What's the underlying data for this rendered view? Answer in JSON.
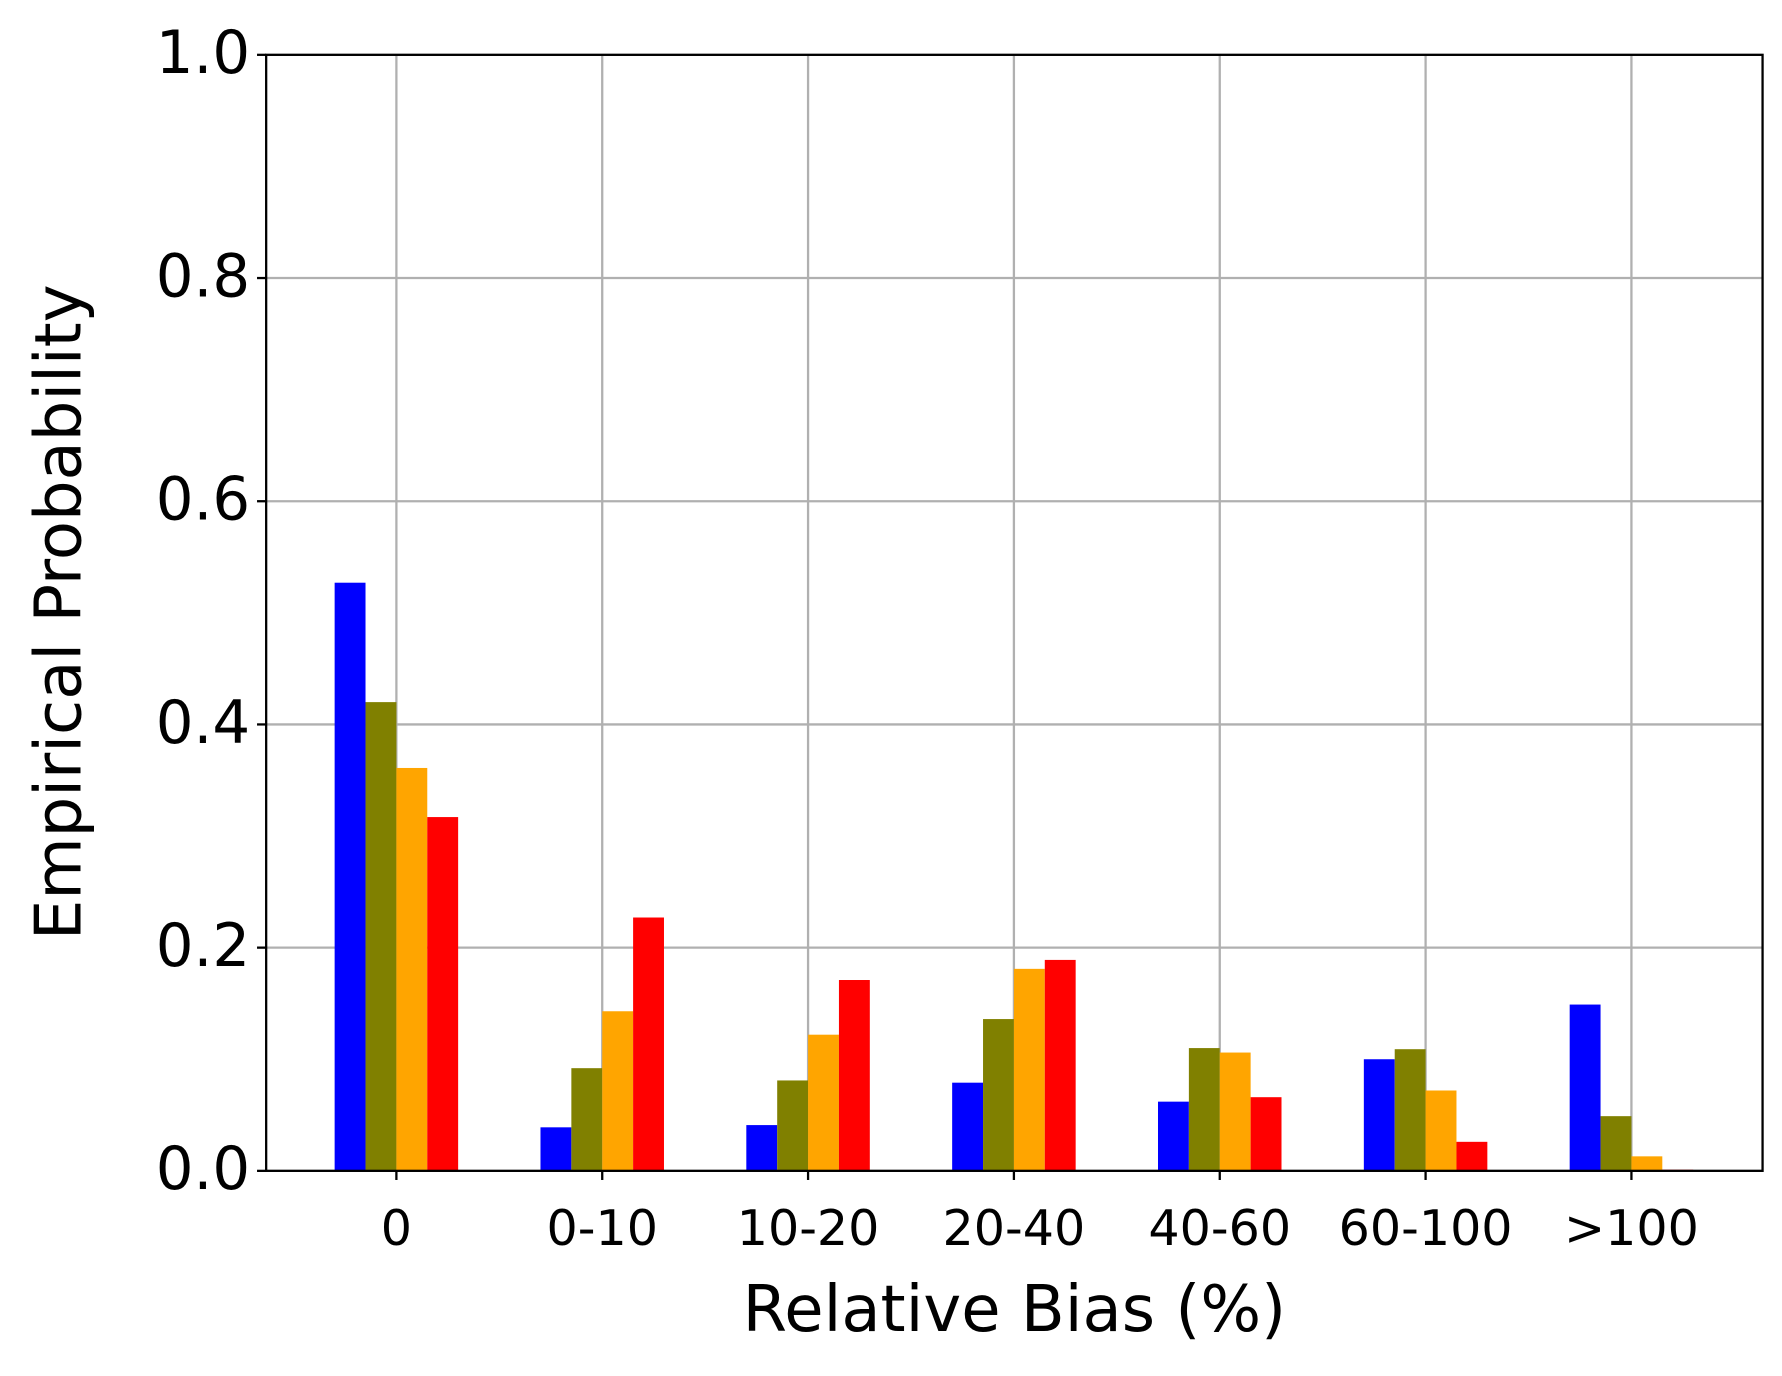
{
  "chart_data": {
    "type": "bar",
    "xlabel": "Relative Bias (%)",
    "ylabel": "Empirical Probability",
    "categories": [
      "0",
      "0-10",
      "10-20",
      "20-40",
      "40-60",
      "60-100",
      ">100"
    ],
    "series": [
      {
        "color": "#0000ff",
        "values": [
          0.527,
          0.039,
          0.041,
          0.079,
          0.062,
          0.1,
          0.149
        ]
      },
      {
        "color": "#808000",
        "values": [
          0.42,
          0.092,
          0.081,
          0.136,
          0.11,
          0.109,
          0.049
        ]
      },
      {
        "color": "#ffa500",
        "values": [
          0.361,
          0.143,
          0.122,
          0.181,
          0.106,
          0.072,
          0.013
        ]
      },
      {
        "color": "#ff0000",
        "values": [
          0.317,
          0.227,
          0.171,
          0.189,
          0.066,
          0.026,
          0.001
        ]
      }
    ],
    "ylim": [
      0,
      1
    ],
    "yticks": [
      {
        "value": 0,
        "label": "0.0"
      },
      0.2,
      0.4,
      0.6,
      0.8,
      {
        "value": 1,
        "label": "1.0"
      }
    ],
    "grid": true
  }
}
